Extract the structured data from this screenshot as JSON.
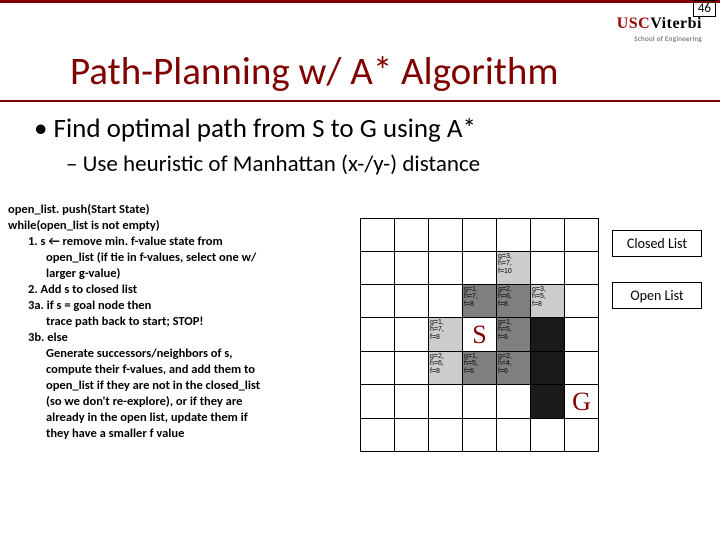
{
  "page_number": "46",
  "logo": {
    "left": "USC",
    "right": "Viterbi",
    "sub": "School of Engineering"
  },
  "title": "Path-Planning w/ A* Algorithm",
  "bullet_main": "• Find optimal path from S to G using A*",
  "bullet_sub": "– Use heuristic of Manhattan (x-/y-) distance",
  "pseudocode": [
    {
      "lvl": "l1",
      "t": "open_list. push(Start State)"
    },
    {
      "lvl": "l1",
      "t": "while(open_list is not empty)"
    },
    {
      "lvl": "l2",
      "t": "1. s ← remove min. f-value state from"
    },
    {
      "lvl": "l3",
      "t": "open_list  (if tie in f-values, select one w/"
    },
    {
      "lvl": "l3",
      "t": "larger g-value)"
    },
    {
      "lvl": "l2",
      "t": "2. Add s to closed list"
    },
    {
      "lvl": "l2",
      "t": "3a. if s = goal node then"
    },
    {
      "lvl": "l3",
      "t": "trace path back to start; STOP!"
    },
    {
      "lvl": "l2",
      "t": "3b. else"
    },
    {
      "lvl": "l3",
      "t": "Generate successors/neighbors of s,"
    },
    {
      "lvl": "l3",
      "t": "compute their f-values, and add them to"
    },
    {
      "lvl": "l3",
      "t": "open_list if they are not in the closed_list"
    },
    {
      "lvl": "l3",
      "t": "(so we don't re-explore), or if they are"
    },
    {
      "lvl": "l3",
      "t": "already in the open list, update them if"
    },
    {
      "lvl": "l3",
      "t": "they have a smaller f value"
    }
  ],
  "grid": {
    "rows": 7,
    "cols": 7,
    "cells": [
      [
        null,
        null,
        null,
        null,
        null,
        null,
        null
      ],
      [
        null,
        null,
        null,
        null,
        {
          "cls": "open-fill",
          "t": "g=3,\nh=7,\nf=10"
        },
        null,
        null
      ],
      [
        null,
        null,
        null,
        {
          "cls": "closed-fill",
          "t": "g=1,\nh=7,\nf=8"
        },
        {
          "cls": "closed-fill",
          "t": "g=2,\nh=6,\nf=8"
        },
        {
          "cls": "open-fill",
          "t": "g=3,\nh=5,\nf=8"
        },
        null
      ],
      [
        null,
        null,
        {
          "cls": "open-fill",
          "t": "g=1,\nh=7,\nf=8"
        },
        {
          "cls": "",
          "big": "S"
        },
        {
          "cls": "closed-fill",
          "t": "g=1,\nh=5,\nf=6"
        },
        {
          "cls": "black"
        },
        null
      ],
      [
        null,
        null,
        {
          "cls": "open-fill",
          "t": "g=2,\nh=6,\nf=8"
        },
        {
          "cls": "closed-fill",
          "t": "g=1,\nh=5,\nf=6"
        },
        {
          "cls": "closed-fill",
          "t": "g=2,\nh=4,\nf=6"
        },
        {
          "cls": "black"
        },
        null
      ],
      [
        null,
        null,
        null,
        null,
        null,
        {
          "cls": "black"
        },
        {
          "cls": "",
          "big": "G"
        }
      ],
      [
        null,
        null,
        null,
        null,
        null,
        null,
        null
      ]
    ]
  },
  "legend_closed": "Closed List",
  "legend_open": "Open List",
  "colors": {
    "maroon": "#800000",
    "closed_fill": "#7f7f7f",
    "open_fill": "#cccccc",
    "obstacle": "#1a1a1a"
  }
}
